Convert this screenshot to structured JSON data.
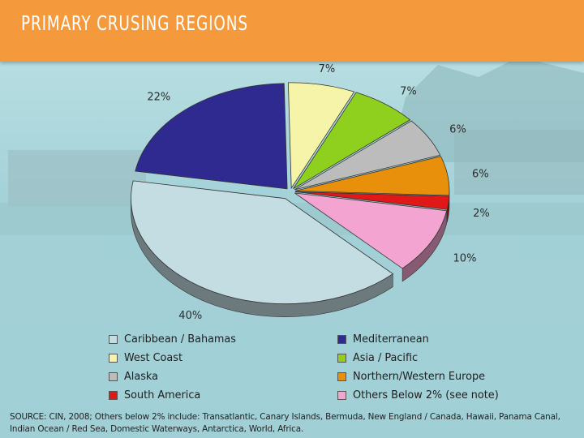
{
  "header": {
    "title": "PRIMARY CRUSING REGIONS"
  },
  "chart_data": {
    "type": "pie",
    "title": "PRIMARY CRUSING REGIONS",
    "slices": [
      {
        "name": "Caribbean / Bahamas",
        "value": 40,
        "label": "40%",
        "color": "#c4dde3"
      },
      {
        "name": "Mediterranean",
        "value": 22,
        "label": "22%",
        "color": "#2e2a8f"
      },
      {
        "name": "West Coast",
        "value": 7,
        "label": "7%",
        "color": "#f6f4a8"
      },
      {
        "name": "Asia / Pacific",
        "value": 7,
        "label": "7%",
        "color": "#8fcf1e"
      },
      {
        "name": "Alaska",
        "value": 6,
        "label": "6%",
        "color": "#bcbcbc"
      },
      {
        "name": "Northern/Western Europe",
        "value": 6,
        "label": "6%",
        "color": "#e8900c"
      },
      {
        "name": "South America",
        "value": 2,
        "label": "2%",
        "color": "#e01818"
      },
      {
        "name": "Others Below 2% (see note)",
        "value": 10,
        "label": "10%",
        "color": "#f3a4d0"
      }
    ],
    "legend_position": "bottom",
    "exploded_slices": [
      "Caribbean / Bahamas"
    ]
  },
  "legend": {
    "items": [
      {
        "label": "Caribbean / Bahamas",
        "color": "#c4dde3"
      },
      {
        "label": "Mediterranean",
        "color": "#2e2a8f"
      },
      {
        "label": "West Coast",
        "color": "#f6f4a8"
      },
      {
        "label": "Asia / Pacific",
        "color": "#8fcf1e"
      },
      {
        "label": "Alaska",
        "color": "#bcbcbc"
      },
      {
        "label": "Northern/Western Europe",
        "color": "#e8900c"
      },
      {
        "label": "South America",
        "color": "#e01818"
      },
      {
        "label": "Others Below 2% (see note)",
        "color": "#f3a4d0"
      }
    ]
  },
  "source_note": "SOURCE: CIN, 2008; Others below 2% include: Transatlantic, Canary Islands, Bermuda, New England / Canada, Hawaii, Panama Canal, Indian Ocean / Red Sea, Domestic Waterways, Antarctica, World, Africa."
}
